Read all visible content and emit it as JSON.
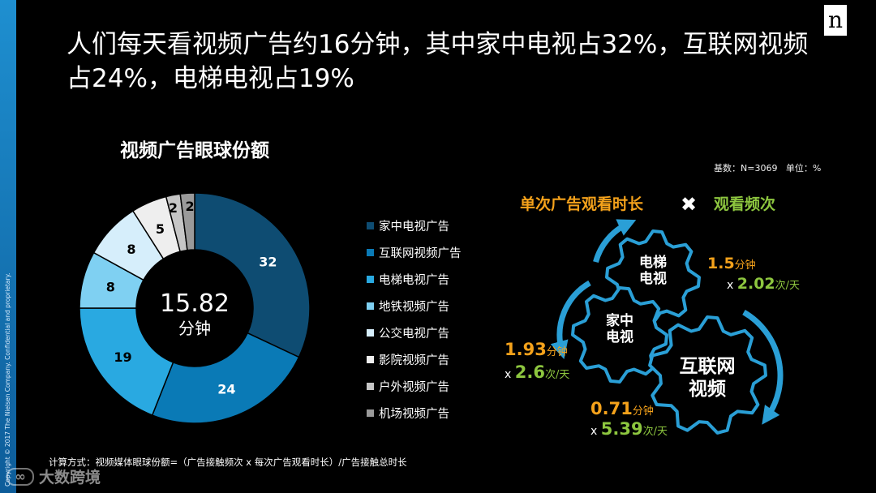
{
  "copyright": "Copyright © 2017 The Nielsen Company. Confidential and proprietary.",
  "logo_text": "n",
  "headline": "人们每天看视频广告约16分钟，其中家中电视占32%，互联网视频占24%，电梯电视占19%",
  "base_note": "基数：N=3069   单位：%",
  "formula": "计算方式：视频媒体眼球份额=（广告接触频次 x 每次广告观看时长）/广告接触总时长",
  "watermark": "大数跨境",
  "colors": {
    "bg": "#000000",
    "orange": "#f5a21b",
    "green": "#8dc63f",
    "gear_stroke": "#2a9fd6"
  },
  "chart_data": {
    "type": "pie",
    "title": "视频广告眼球份额",
    "center_value": "15.82",
    "center_unit": "分钟",
    "categories": [
      "家中电视广告",
      "互联网视频广告",
      "电梯电视广告",
      "地铁视频广告",
      "公交电视广告",
      "影院视频广告",
      "户外视频广告",
      "机场视频广告"
    ],
    "values": [
      32,
      24,
      19,
      8,
      8,
      5,
      2,
      2
    ],
    "colors": [
      "#0e4c72",
      "#0a7ab6",
      "#29a9e1",
      "#7fd0f2",
      "#d6eefb",
      "#eeeeee",
      "#c6c6c6",
      "#9a9a9a"
    ],
    "legend_position": "right"
  },
  "gear_panel": {
    "title_left": "单次广告观看时长",
    "multiply_sign": "✖",
    "title_right": "观看频次",
    "gears": [
      {
        "label_line1": "电梯",
        "label_line2": "电视",
        "duration": "1.5",
        "duration_unit": "分钟",
        "x_sign": "x",
        "frequency": "2.02",
        "frequency_unit": "次/天"
      },
      {
        "label_line1": "家中",
        "label_line2": "电视",
        "duration": "1.93",
        "duration_unit": "分钟",
        "x_sign": "x",
        "frequency": "2.6",
        "frequency_unit": "次/天"
      },
      {
        "label_line1": "互联网",
        "label_line2": "视频",
        "duration": "0.71",
        "duration_unit": "分钟",
        "x_sign": "x",
        "frequency": "5.39",
        "frequency_unit": "次/天"
      }
    ]
  }
}
